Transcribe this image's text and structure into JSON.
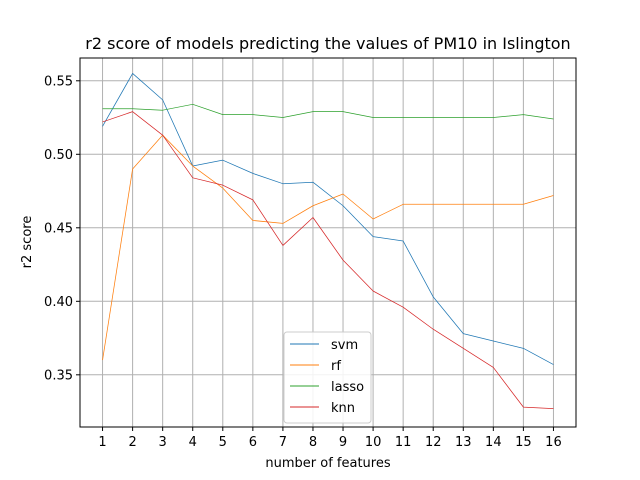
{
  "chart_data": {
    "type": "line",
    "title": "r2 score of models predicting the values of PM10 in Islington",
    "xlabel": "number of features",
    "ylabel": "r2 score",
    "x": [
      1,
      2,
      3,
      4,
      5,
      6,
      7,
      8,
      9,
      10,
      11,
      12,
      13,
      14,
      15,
      16
    ],
    "xlim": [
      0.25,
      16.75
    ],
    "ylim": [
      0.3145,
      0.5655
    ],
    "yticks": [
      0.35,
      0.4,
      0.45,
      0.5,
      0.55
    ],
    "ytick_labels": [
      "0.35",
      "0.40",
      "0.45",
      "0.50",
      "0.55"
    ],
    "xtick_labels": [
      "1",
      "2",
      "3",
      "4",
      "5",
      "6",
      "7",
      "8",
      "9",
      "10",
      "11",
      "12",
      "13",
      "14",
      "15",
      "16"
    ],
    "grid": true,
    "legend_position": "lower center",
    "series": [
      {
        "name": "svm",
        "color": "#1f77b4",
        "values": [
          0.519,
          0.555,
          0.537,
          0.492,
          0.496,
          0.487,
          0.48,
          0.481,
          0.465,
          0.444,
          0.441,
          0.403,
          0.378,
          0.373,
          0.368,
          0.357
        ]
      },
      {
        "name": "rf",
        "color": "#ff7f0e",
        "values": [
          0.36,
          0.49,
          0.513,
          0.492,
          0.477,
          0.455,
          0.453,
          0.465,
          0.473,
          0.456,
          0.466,
          0.466,
          0.466,
          0.466,
          0.466,
          0.472
        ]
      },
      {
        "name": "lasso",
        "color": "#2ca02c",
        "values": [
          0.531,
          0.531,
          0.53,
          0.534,
          0.527,
          0.527,
          0.525,
          0.529,
          0.529,
          0.525,
          0.525,
          0.525,
          0.525,
          0.525,
          0.527,
          0.524
        ]
      },
      {
        "name": "knn",
        "color": "#d62728",
        "values": [
          0.522,
          0.529,
          0.513,
          0.484,
          0.479,
          0.469,
          0.438,
          0.457,
          0.428,
          0.407,
          0.396,
          0.381,
          0.368,
          0.355,
          0.328,
          0.327
        ]
      }
    ]
  }
}
